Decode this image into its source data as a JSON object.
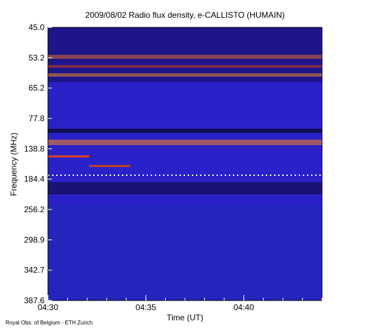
{
  "chart_data": {
    "type": "spectrogram",
    "title": "2009/08/02  Radio flux density, e-CALLISTO (HUMAIN)",
    "x_label": "Time (UT)",
    "y_label": "Frequency (MHz)",
    "credit": "Royal Obs. of Belgium - ETH Zurich",
    "xlim": [
      "04:30",
      "04:44"
    ],
    "xticks": [
      "04:30",
      "04:35",
      "04:40"
    ],
    "yticks": [
      {
        "value": 45.0,
        "label": "45.0"
      },
      {
        "value": 53.2,
        "label": "53.2"
      },
      {
        "value": 65.2,
        "label": "65.2"
      },
      {
        "value": 77.8,
        "label": "77.8"
      },
      {
        "value": 138.8,
        "label": "138.8"
      },
      {
        "value": 184.4,
        "label": "184.4"
      },
      {
        "value": 256.2,
        "label": "256.2"
      },
      {
        "value": 298.9,
        "label": "298.9"
      },
      {
        "value": 342.7,
        "label": "342.7"
      },
      {
        "value": 387.6,
        "label": "387.6"
      }
    ]
  }
}
